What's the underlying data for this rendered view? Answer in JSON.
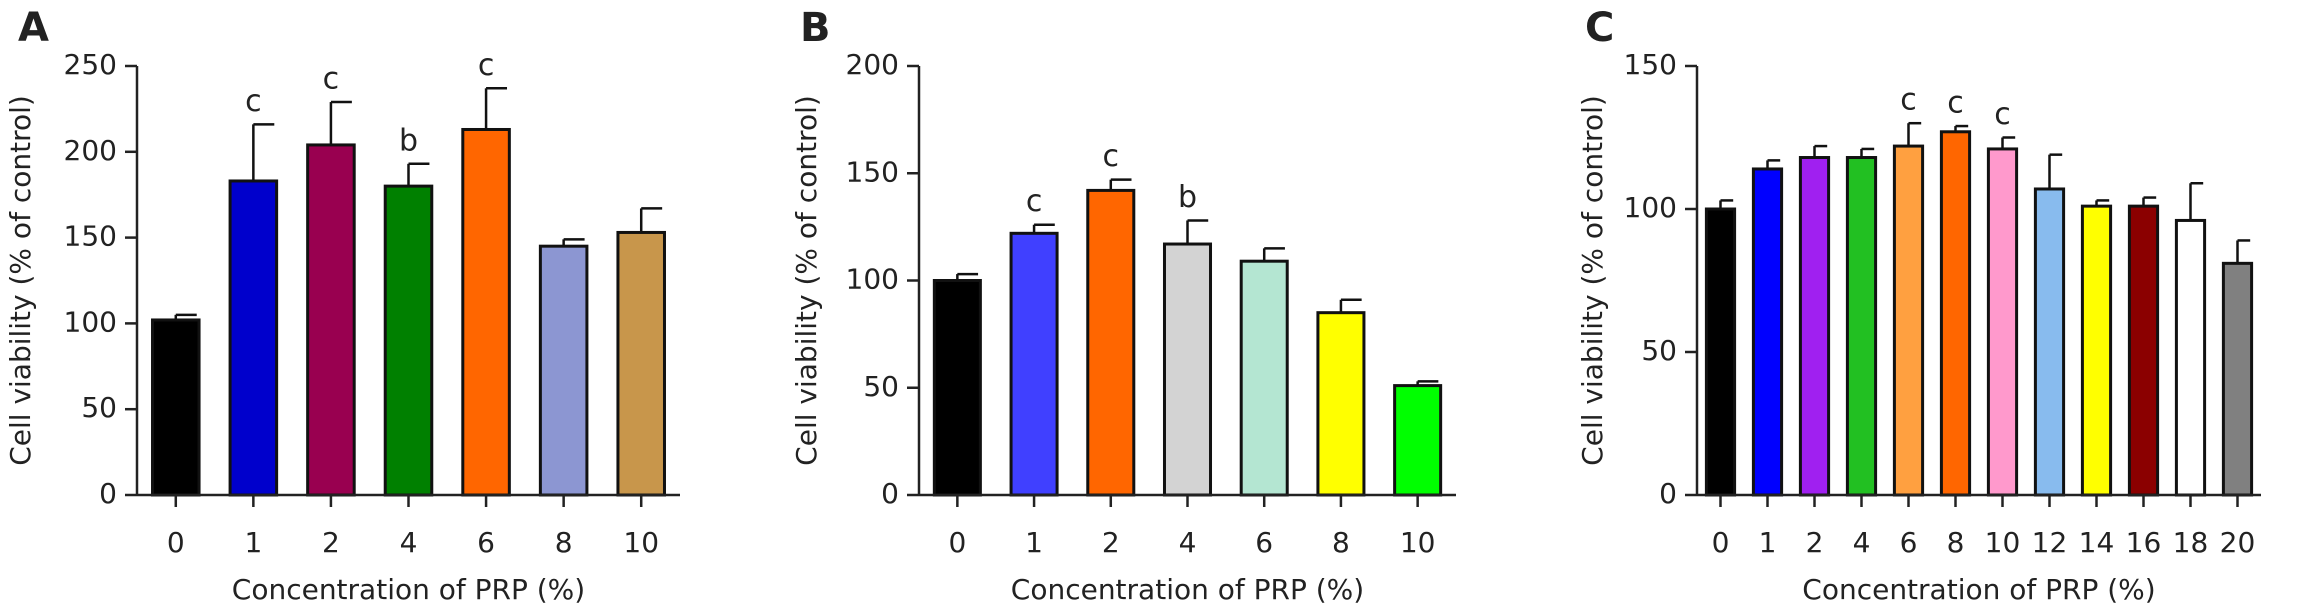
{
  "chart_data": [
    {
      "type": "bar",
      "panel_label": "A",
      "x_label": "Concentration of PRP (%)",
      "y_label": "Cell viability (% of control)",
      "categories": [
        "0",
        "1",
        "2",
        "4",
        "6",
        "8",
        "10"
      ],
      "values": [
        102,
        183,
        204,
        180,
        213,
        145,
        153
      ],
      "errors": [
        3,
        33,
        25,
        13,
        24,
        4,
        14
      ],
      "annotations": [
        null,
        "c",
        "c",
        "b",
        "c",
        null,
        null
      ],
      "colors": [
        "#000000",
        "#0000cc",
        "#990050",
        "#008000",
        "#ff6600",
        "#8c96d2",
        "#c8964b"
      ],
      "ylim": [
        0,
        250
      ],
      "yticks": [
        0,
        50,
        100,
        150,
        200,
        250
      ]
    },
    {
      "type": "bar",
      "panel_label": "B",
      "x_label": "Concentration of PRP (%)",
      "y_label": "Cell viability (% of control)",
      "categories": [
        "0",
        "1",
        "2",
        "4",
        "6",
        "8",
        "10"
      ],
      "values": [
        100,
        122,
        142,
        117,
        109,
        85,
        51
      ],
      "errors": [
        3,
        4,
        5,
        11,
        6,
        6,
        2
      ],
      "annotations": [
        null,
        "c",
        "c",
        "b",
        null,
        null,
        null
      ],
      "colors": [
        "#000000",
        "#4040ff",
        "#ff6600",
        "#d3d3d3",
        "#b4e6d2",
        "#ffff00",
        "#00ff00"
      ],
      "ylim": [
        0,
        200
      ],
      "yticks": [
        0,
        50,
        100,
        150,
        200
      ]
    },
    {
      "type": "bar",
      "panel_label": "C",
      "x_label": "Concentration of PRP (%)",
      "y_label": "Cell viability (% of control)",
      "categories": [
        "0",
        "1",
        "2",
        "4",
        "6",
        "8",
        "10",
        "12",
        "14",
        "16",
        "18",
        "20"
      ],
      "values": [
        100,
        114,
        118,
        118,
        122,
        127,
        121,
        107,
        101,
        101,
        96,
        81
      ],
      "errors": [
        3,
        3,
        4,
        3,
        8,
        2,
        4,
        12,
        2,
        3,
        13,
        8
      ],
      "annotations": [
        null,
        null,
        null,
        null,
        "c",
        "c",
        "c",
        null,
        null,
        null,
        null,
        null
      ],
      "colors": [
        "#000000",
        "#0000ff",
        "#a020f0",
        "#22c022",
        "#ffa040",
        "#ff6600",
        "#ff99cc",
        "#88bbee",
        "#ffff00",
        "#8b0000",
        "#ffffff",
        "#808080"
      ],
      "ylim": [
        0,
        150
      ],
      "yticks": [
        0,
        50,
        100,
        150
      ]
    }
  ]
}
